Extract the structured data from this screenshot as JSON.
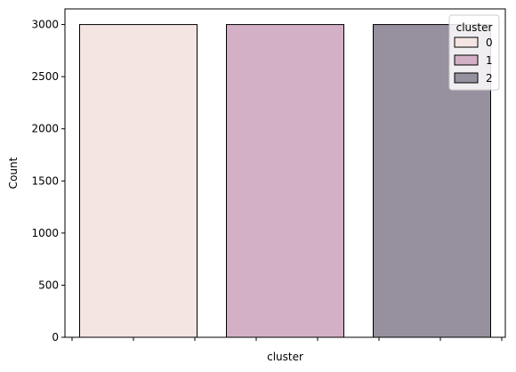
{
  "chart_data": {
    "type": "bar",
    "categories": [
      "0",
      "1",
      "2"
    ],
    "series": [
      {
        "name": "0",
        "values": [
          3000,
          null,
          null
        ]
      },
      {
        "name": "1",
        "values": [
          null,
          3000,
          null
        ]
      },
      {
        "name": "2",
        "values": [
          null,
          null,
          3000
        ]
      }
    ],
    "values": [
      3000,
      3000,
      3000
    ],
    "xlabel": "cluster",
    "ylabel": "Count",
    "ylim": [
      0,
      3150
    ],
    "yticks": [
      0,
      500,
      1000,
      1500,
      2000,
      2500,
      3000
    ],
    "x_tick_count": 8,
    "colors": [
      "#f4e4e2",
      "#d4b0c6",
      "#97909f"
    ],
    "edge_color": "#000000",
    "legend": {
      "title": "cluster",
      "entries": [
        "0",
        "1",
        "2"
      ],
      "placement": "top-right"
    },
    "grid": false
  }
}
